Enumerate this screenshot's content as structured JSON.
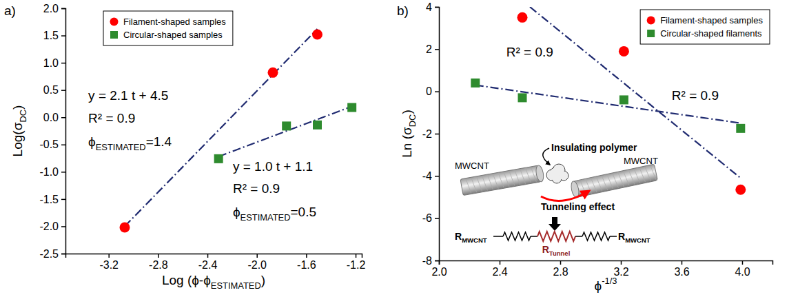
{
  "chart_data": [
    {
      "type": "scatter",
      "panel_label": "a)",
      "x_label": {
        "text": "Log (ϕ-ϕ",
        "sub": "ESTIMATED",
        "after": ")"
      },
      "y_label": {
        "text": "Log(σ",
        "sub": "DC",
        "after": ")"
      },
      "xlim": [
        -3.55,
        -1.15
      ],
      "xticks": [
        -3.2,
        -2.8,
        -2.4,
        {
          "value": -2.0,
          "label": "-2.0"
        },
        -1.6,
        -1.2
      ],
      "ylim": [
        -2.5,
        2.0
      ],
      "yticks": [
        -2.5,
        {
          "value": -2.0,
          "label": "-2.0"
        },
        -1.5,
        {
          "value": -1.0,
          "label": "-1.0"
        },
        -0.5,
        {
          "value": 0.0,
          "label": "0.0"
        },
        0.5,
        {
          "value": 1.0,
          "label": "1.0"
        },
        1.5,
        {
          "value": 2.0,
          "label": "2.0"
        }
      ],
      "legend": "top-left",
      "series": [
        {
          "name": "Filament-shaped samples",
          "color": "#ff0000",
          "marker": "circle",
          "x": [
            -3.07,
            -1.87,
            -1.51
          ],
          "values": [
            -2.02,
            0.82,
            1.52
          ]
        },
        {
          "name": "Circular-shaped samples",
          "color": "#2e8b2e",
          "marker": "square",
          "x": [
            -2.31,
            -1.76,
            -1.51,
            -1.23
          ],
          "values": [
            -0.76,
            -0.16,
            -0.14,
            0.18
          ]
        },
        {
          "type": "line",
          "line_style": "dashdot",
          "color": "#1f2a70",
          "x": [
            -3.07,
            -1.51
          ],
          "values": [
            -2.0,
            1.62
          ]
        },
        {
          "type": "line",
          "line_style": "dashdot",
          "color": "#1f2a70",
          "x": [
            -2.31,
            -1.23
          ],
          "values": [
            -0.72,
            0.2
          ]
        }
      ],
      "annotations": [
        "y = 2.1 t + 4.5",
        "R² = 0.9",
        {
          "text": "ϕ",
          "sub": "ESTIMATED",
          "after": "=1.4"
        },
        "y = 1.0 t + 1.1",
        "R² = 0.9",
        {
          "text": "ϕ",
          "sub": "ESTIMATED",
          "after": "=0.5"
        }
      ]
    },
    {
      "type": "scatter",
      "panel_label": "b)",
      "x_label": {
        "text": "ϕ",
        "sup": "-1/3"
      },
      "y_label": {
        "text": "Ln (σ",
        "sub": "DC",
        "after": ")"
      },
      "xlim": [
        2.0,
        4.2
      ],
      "xticks": [
        {
          "value": 2.0,
          "label": "2.0"
        },
        2.4,
        2.8,
        3.2,
        3.6,
        {
          "value": 4.0,
          "label": "4.0"
        }
      ],
      "ylim": [
        -8,
        4
      ],
      "yticks": [
        -8,
        -6,
        -4,
        -2,
        0,
        2,
        4
      ],
      "legend": "top-right",
      "series": [
        {
          "name": "Filament-shaped samples",
          "color": "#ff0000",
          "marker": "circle",
          "x": [
            2.55,
            3.22,
            3.99
          ],
          "values": [
            3.5,
            1.9,
            -4.65
          ]
        },
        {
          "name": "Circular-shaped filaments",
          "color": "#2e8b2e",
          "marker": "square",
          "x": [
            2.24,
            2.55,
            3.22,
            3.99
          ],
          "values": [
            0.4,
            -0.3,
            -0.4,
            -1.75
          ]
        },
        {
          "type": "line",
          "line_style": "dashdot",
          "color": "#1f2a70",
          "x": [
            2.6,
            3.99
          ],
          "values": [
            4.0,
            -4.1
          ]
        },
        {
          "type": "line",
          "line_style": "dashdot",
          "color": "#1f2a70",
          "x": [
            2.24,
            3.99
          ],
          "values": [
            0.3,
            -1.5
          ]
        }
      ],
      "annotations": [
        "R² = 0.9",
        "R² = 0.9"
      ],
      "inset": {
        "texts": [
          "Insulating polymer",
          "MWCNT",
          "MWCNT",
          "Tunneling effect"
        ],
        "resistors": [
          {
            "text": "R",
            "sub": "MWCNT"
          },
          {
            "text": "R",
            "sub": "Tunnel"
          },
          {
            "text": "R",
            "sub": "MWCNT"
          }
        ]
      }
    }
  ]
}
